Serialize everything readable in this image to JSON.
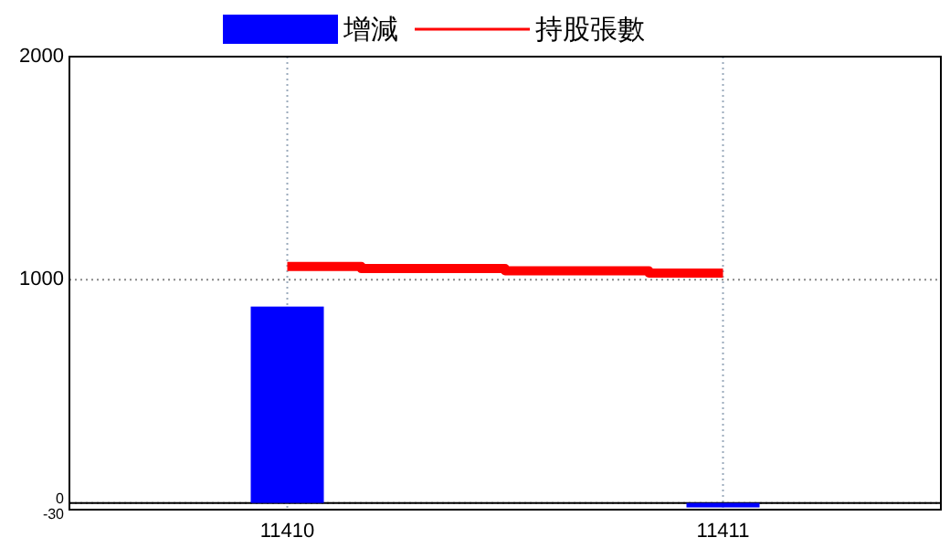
{
  "chart_data": {
    "type": "bar",
    "xlim": [
      11409.5,
      11411.5
    ],
    "xticks": [
      11410,
      11411
    ],
    "ylim": [
      -30,
      2000
    ],
    "yticks": [
      -30,
      0,
      1000,
      2000
    ],
    "grid": true,
    "legend": "top",
    "ref_lines": [
      {
        "axis": "y",
        "value": 0,
        "color": "#000000"
      }
    ],
    "series": [
      {
        "name": "增減",
        "color": "#0000ff",
        "x": [
          11410,
          11411
        ],
        "values": [
          880,
          -20
        ]
      },
      {
        "name": "持股張數",
        "type": "step",
        "color": "#ff0000",
        "x": [
          11410,
          11410.17,
          11410.5,
          11410.83,
          11411
        ],
        "values": [
          1060,
          1050,
          1040,
          1030,
          1030
        ]
      }
    ]
  }
}
